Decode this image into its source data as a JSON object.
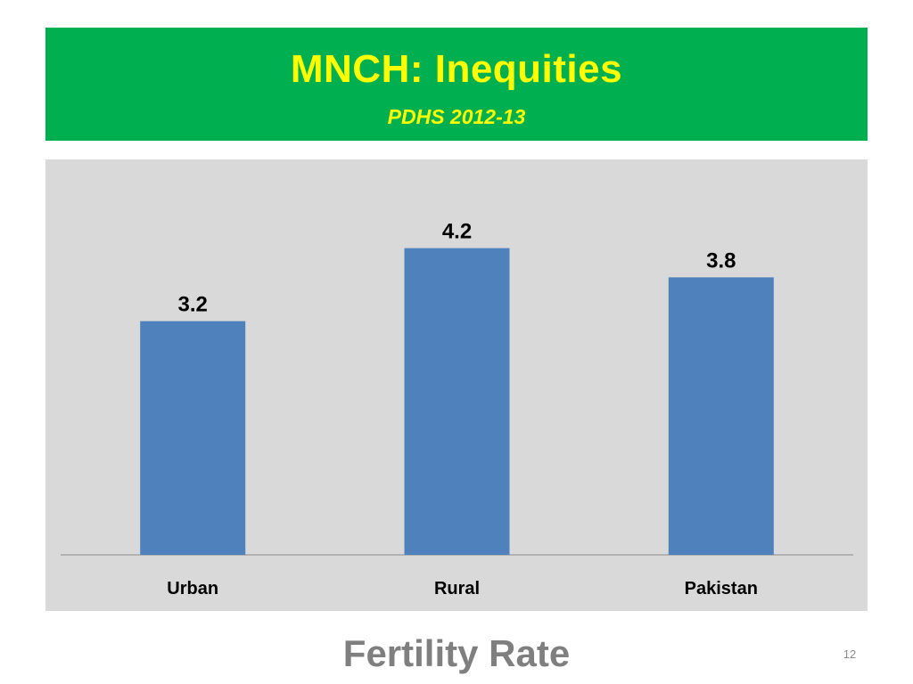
{
  "slide": {
    "title": "MNCH: Inequities",
    "subtitle": "PDHS 2012-13",
    "footer_title": "Fertility Rate",
    "page_number": "12"
  },
  "colors": {
    "banner_background": "#00B050",
    "banner_text": "#FFFF00",
    "chart_background": "#D9D9D9",
    "bar_fill": "#4F81BD",
    "footer_text": "#7F7F7F"
  },
  "chart_data": {
    "type": "bar",
    "categories": [
      "Urban",
      "Rural",
      "Pakistan"
    ],
    "values": [
      3.2,
      4.2,
      3.8
    ],
    "value_labels": [
      "3.2",
      "4.2",
      "3.8"
    ],
    "ylim": [
      0,
      5.0
    ],
    "grid": false,
    "legend": "none",
    "data_labels": true
  }
}
